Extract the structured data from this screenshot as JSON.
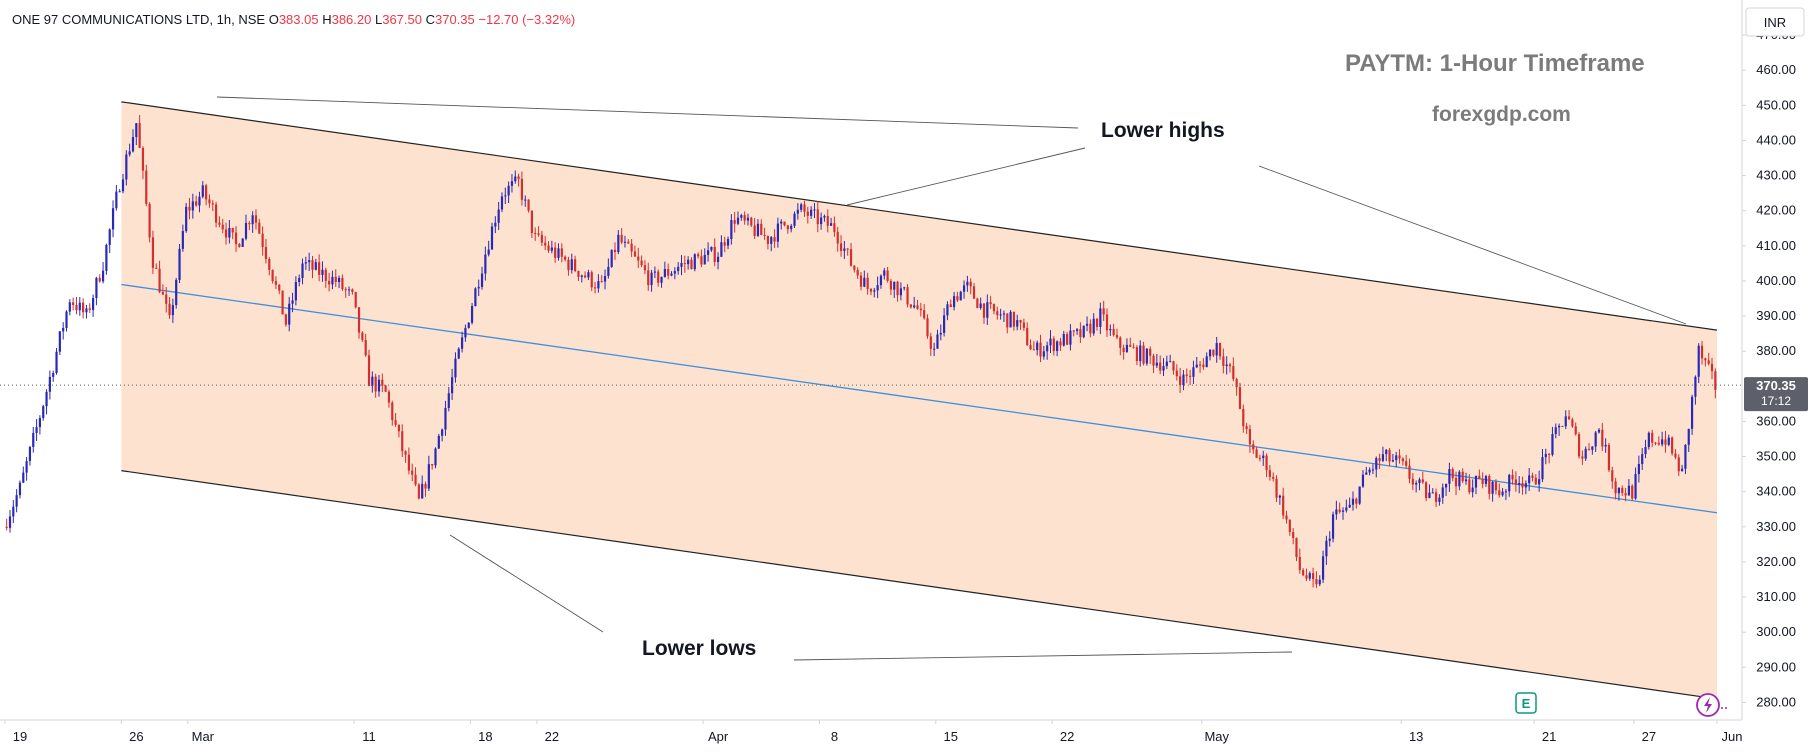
{
  "header": {
    "symbol_line": "ONE 97 COMMUNICATIONS LTD, 1h, NSE",
    "open_label": "O",
    "open": "383.05",
    "high_label": "H",
    "high": "386.20",
    "low_label": "L",
    "low": "367.50",
    "close_label": "C",
    "close": "370.35",
    "change": "−12.70 (−3.32%)"
  },
  "currency": "INR",
  "title": "PAYTM: 1-Hour Timeframe",
  "watermark": "forexgdp.com",
  "annotations": {
    "highs": "Lower highs",
    "lows": "Lower lows"
  },
  "price_tag": {
    "price": "370.35",
    "countdown": "17:12"
  },
  "colors": {
    "up": "#2929b8",
    "down": "#d32f2f",
    "channel_fill": "#fde3cf",
    "midline": "#3d8fe0",
    "tag_bg": "#5d606b",
    "text": "#131722",
    "annotation_title": "#7b7b7b"
  },
  "icons": {
    "earnings": "E",
    "alert": "lightning-icon"
  },
  "chart_data": {
    "type": "candlestick",
    "title": "PAYTM: 1-Hour Timeframe",
    "symbol": "ONE 97 COMMUNICATIONS LTD",
    "interval": "1h",
    "exchange": "NSE",
    "ylim": [
      275,
      480
    ],
    "y_ticks": [
      280,
      290,
      300,
      310,
      320,
      330,
      340,
      350,
      360,
      370,
      380,
      390,
      400,
      410,
      420,
      430,
      440,
      450,
      460,
      470
    ],
    "x_ticks": [
      {
        "label": "19",
        "date": "2024-02-19"
      },
      {
        "label": "26",
        "date": "2024-02-26"
      },
      {
        "label": "Mar",
        "date": "2024-03-01"
      },
      {
        "label": "11",
        "date": "2024-03-11"
      },
      {
        "label": "18",
        "date": "2024-03-18"
      },
      {
        "label": "22",
        "date": "2024-03-22"
      },
      {
        "label": "Apr",
        "date": "2024-04-01"
      },
      {
        "label": "8",
        "date": "2024-04-08"
      },
      {
        "label": "15",
        "date": "2024-04-15"
      },
      {
        "label": "22",
        "date": "2024-04-22"
      },
      {
        "label": "May",
        "date": "2024-05-01"
      },
      {
        "label": "13",
        "date": "2024-05-13"
      },
      {
        "label": "21",
        "date": "2024-05-21"
      },
      {
        "label": "27",
        "date": "2024-05-27"
      },
      {
        "label": "Jun",
        "date": "2024-06-01"
      }
    ],
    "last_price": 370.35,
    "channel": {
      "upper": [
        {
          "date": "2024-02-26",
          "price": 451
        },
        {
          "date": "2024-06-01",
          "price": 386
        }
      ],
      "lower": [
        {
          "date": "2024-02-26",
          "price": 346
        },
        {
          "date": "2024-06-01",
          "price": 281
        }
      ],
      "mid": [
        {
          "date": "2024-02-26",
          "price": 399
        },
        {
          "date": "2024-06-01",
          "price": 334
        }
      ]
    },
    "price_path": [
      {
        "date": "2024-02-19",
        "price": 330
      },
      {
        "date": "2024-02-20",
        "price": 341
      },
      {
        "date": "2024-02-21",
        "price": 358
      },
      {
        "date": "2024-02-22",
        "price": 376
      },
      {
        "date": "2024-02-23",
        "price": 395
      },
      {
        "date": "2024-02-24",
        "price": 390
      },
      {
        "date": "2024-02-25",
        "price": 405
      },
      {
        "date": "2024-02-26",
        "price": 428
      },
      {
        "date": "2024-02-27",
        "price": 445
      },
      {
        "date": "2024-02-28",
        "price": 406
      },
      {
        "date": "2024-02-29",
        "price": 388
      },
      {
        "date": "2024-03-01",
        "price": 420
      },
      {
        "date": "2024-03-02",
        "price": 425
      },
      {
        "date": "2024-03-04",
        "price": 410
      },
      {
        "date": "2024-03-05",
        "price": 420
      },
      {
        "date": "2024-03-06",
        "price": 405
      },
      {
        "date": "2024-03-07",
        "price": 388
      },
      {
        "date": "2024-03-08",
        "price": 405
      },
      {
        "date": "2024-03-10",
        "price": 400
      },
      {
        "date": "2024-03-11",
        "price": 395
      },
      {
        "date": "2024-03-12",
        "price": 372
      },
      {
        "date": "2024-03-13",
        "price": 368
      },
      {
        "date": "2024-03-14",
        "price": 352
      },
      {
        "date": "2024-03-15",
        "price": 337
      },
      {
        "date": "2024-03-16",
        "price": 352
      },
      {
        "date": "2024-03-17",
        "price": 372
      },
      {
        "date": "2024-03-18",
        "price": 390
      },
      {
        "date": "2024-03-19",
        "price": 408
      },
      {
        "date": "2024-03-20",
        "price": 425
      },
      {
        "date": "2024-03-21",
        "price": 428
      },
      {
        "date": "2024-03-22",
        "price": 412
      },
      {
        "date": "2024-03-24",
        "price": 405
      },
      {
        "date": "2024-03-26",
        "price": 398
      },
      {
        "date": "2024-03-27",
        "price": 412
      },
      {
        "date": "2024-03-29",
        "price": 400
      },
      {
        "date": "2024-03-31",
        "price": 405
      },
      {
        "date": "2024-04-02",
        "price": 408
      },
      {
        "date": "2024-04-03",
        "price": 418
      },
      {
        "date": "2024-04-05",
        "price": 412
      },
      {
        "date": "2024-04-07",
        "price": 420
      },
      {
        "date": "2024-04-09",
        "price": 415
      },
      {
        "date": "2024-04-10",
        "price": 405
      },
      {
        "date": "2024-04-11",
        "price": 398
      },
      {
        "date": "2024-04-12",
        "price": 402
      },
      {
        "date": "2024-04-14",
        "price": 392
      },
      {
        "date": "2024-04-15",
        "price": 380
      },
      {
        "date": "2024-04-16",
        "price": 395
      },
      {
        "date": "2024-04-17",
        "price": 398
      },
      {
        "date": "2024-04-18",
        "price": 392
      },
      {
        "date": "2024-04-20",
        "price": 388
      },
      {
        "date": "2024-04-21",
        "price": 380
      },
      {
        "date": "2024-04-22",
        "price": 382
      },
      {
        "date": "2024-04-24",
        "price": 385
      },
      {
        "date": "2024-04-25",
        "price": 390
      },
      {
        "date": "2024-04-26",
        "price": 382
      },
      {
        "date": "2024-04-28",
        "price": 378
      },
      {
        "date": "2024-04-29",
        "price": 376
      },
      {
        "date": "2024-04-30",
        "price": 372
      },
      {
        "date": "2024-05-01",
        "price": 376
      },
      {
        "date": "2024-05-02",
        "price": 382
      },
      {
        "date": "2024-05-03",
        "price": 372
      },
      {
        "date": "2024-05-04",
        "price": 352
      },
      {
        "date": "2024-05-05",
        "price": 348
      },
      {
        "date": "2024-05-06",
        "price": 335
      },
      {
        "date": "2024-05-07",
        "price": 318
      },
      {
        "date": "2024-05-08",
        "price": 312
      },
      {
        "date": "2024-05-09",
        "price": 333
      },
      {
        "date": "2024-05-10",
        "price": 335
      },
      {
        "date": "2024-05-11",
        "price": 345
      },
      {
        "date": "2024-05-12",
        "price": 350
      },
      {
        "date": "2024-05-13",
        "price": 348
      },
      {
        "date": "2024-05-14",
        "price": 342
      },
      {
        "date": "2024-05-15",
        "price": 338
      },
      {
        "date": "2024-05-16",
        "price": 345
      },
      {
        "date": "2024-05-17",
        "price": 342
      },
      {
        "date": "2024-05-18",
        "price": 343
      },
      {
        "date": "2024-05-19",
        "price": 340
      },
      {
        "date": "2024-05-20",
        "price": 344
      },
      {
        "date": "2024-05-21",
        "price": 342
      },
      {
        "date": "2024-05-22",
        "price": 352
      },
      {
        "date": "2024-05-23",
        "price": 362
      },
      {
        "date": "2024-05-24",
        "price": 350
      },
      {
        "date": "2024-05-25",
        "price": 358
      },
      {
        "date": "2024-05-26",
        "price": 341
      },
      {
        "date": "2024-05-27",
        "price": 340
      },
      {
        "date": "2024-05-28",
        "price": 355
      },
      {
        "date": "2024-05-29",
        "price": 355
      },
      {
        "date": "2024-05-30",
        "price": 345
      },
      {
        "date": "2024-05-31",
        "price": 380
      },
      {
        "date": "2024-06-01",
        "price": 370
      }
    ]
  }
}
